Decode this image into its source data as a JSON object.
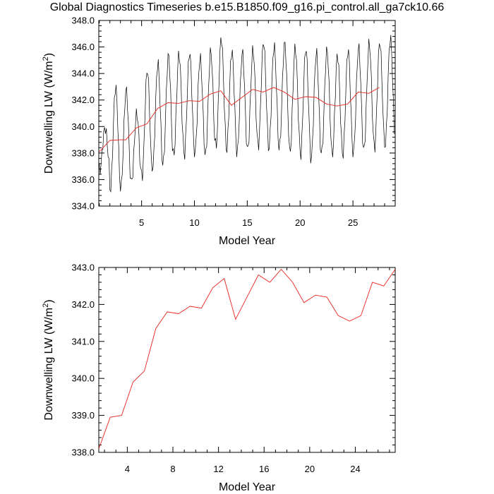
{
  "title": "Global Diagnostics Timeseries b.e15.B1850.f09_g16.pi_control.all_ga7ck10.66",
  "colors": {
    "monthly_line": "#000000",
    "annual_line": "#e8231d"
  },
  "chart_data": [
    {
      "type": "line",
      "xlabel": "Model Year",
      "ylabel": "Downwelling LW (W/m",
      "ylabel_sup": "2",
      "ylabel_end": ")",
      "xlim": [
        0.95,
        29.0
      ],
      "ylim": [
        334.0,
        348.0
      ],
      "xticks": [
        5,
        10,
        15,
        20,
        25
      ],
      "yticks": [
        "334.0",
        "336.0",
        "338.0",
        "340.0",
        "342.0",
        "344.0",
        "346.0",
        "348.0"
      ],
      "series": [
        {
          "style": "monthly",
          "seasonal_range": [
            [
              1,
              336.7,
              339.9
            ],
            [
              2,
              335.2,
              343.0
            ],
            [
              3,
              335.4,
              342.8
            ],
            [
              4,
              335.8,
              341.0
            ],
            [
              5,
              336.2,
              344.3
            ],
            [
              6,
              336.8,
              344.8
            ],
            [
              7,
              337.2,
              345.4
            ],
            [
              8,
              337.8,
              345.5
            ],
            [
              9,
              337.8,
              345.6
            ],
            [
              10,
              338.0,
              345.2
            ],
            [
              11,
              337.8,
              345.7
            ],
            [
              12,
              338.5,
              346.7
            ],
            [
              13,
              338.2,
              345.7
            ],
            [
              14,
              338.0,
              345.6
            ],
            [
              15,
              338.2,
              345.8
            ],
            [
              16,
              338.5,
              346.4
            ],
            [
              17,
              338.3,
              346.1
            ],
            [
              18,
              338.4,
              346.3
            ],
            [
              19,
              338.0,
              346.0
            ],
            [
              20,
              337.8,
              345.9
            ],
            [
              21,
              337.5,
              345.6
            ],
            [
              22,
              338.0,
              345.8
            ],
            [
              23,
              337.8,
              345.4
            ],
            [
              24,
              337.8,
              345.8
            ],
            [
              25,
              338.0,
              346.0
            ],
            [
              26,
              338.2,
              346.3
            ],
            [
              27,
              338.3,
              346.4
            ],
            [
              28,
              338.5,
              346.7
            ]
          ]
        },
        {
          "style": "annual",
          "x": [
            1.0,
            2.0,
            3.0,
            3.5,
            4.5,
            5.5,
            6.5,
            7.5,
            8.5,
            9.5,
            10.5,
            11.5,
            12.5,
            13.5,
            14.5,
            15.5,
            16.5,
            17.5,
            18.5,
            19.5,
            20.5,
            21.5,
            22.5,
            23.5,
            24.5,
            25.5,
            26.5,
            27.5
          ],
          "y": [
            338.1,
            338.95,
            339.0,
            339.0,
            339.9,
            340.2,
            341.35,
            341.8,
            341.75,
            341.95,
            341.9,
            342.45,
            342.7,
            341.6,
            342.2,
            342.8,
            342.6,
            342.95,
            342.6,
            342.05,
            342.25,
            342.2,
            341.7,
            341.55,
            341.7,
            342.6,
            342.5,
            342.95
          ]
        }
      ]
    },
    {
      "type": "line",
      "xlabel": "Model Year",
      "ylabel": "Downwelling LW (W/m",
      "ylabel_sup": "2",
      "ylabel_end": ")",
      "xlim": [
        1.5,
        27.5
      ],
      "ylim": [
        338.0,
        343.0
      ],
      "xticks": [
        4,
        8,
        12,
        16,
        20,
        24
      ],
      "yticks": [
        "338.0",
        "339.0",
        "340.0",
        "341.0",
        "342.0",
        "343.0"
      ],
      "series": [
        {
          "style": "annual",
          "x": [
            1.5,
            2.5,
            3.5,
            4.5,
            5.5,
            6.5,
            7.5,
            8.5,
            9.5,
            10.5,
            11.5,
            12.5,
            13.5,
            14.5,
            15.5,
            16.5,
            17.5,
            18.5,
            19.5,
            20.5,
            21.5,
            22.5,
            23.5,
            24.5,
            25.5,
            26.5,
            27.5
          ],
          "y": [
            338.1,
            338.95,
            339.0,
            339.9,
            340.2,
            341.35,
            341.8,
            341.75,
            341.95,
            341.9,
            342.45,
            342.7,
            341.6,
            342.2,
            342.8,
            342.6,
            342.95,
            342.6,
            342.05,
            342.25,
            342.2,
            341.7,
            341.55,
            341.7,
            342.6,
            342.5,
            342.95
          ]
        }
      ]
    }
  ]
}
